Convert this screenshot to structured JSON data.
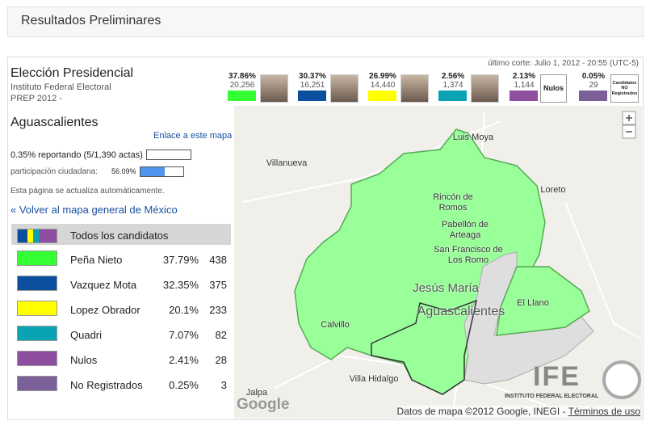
{
  "header": {
    "title": "Resultados Preliminares"
  },
  "election": {
    "title": "Elección Presidencial",
    "org": "Instituto Federal Electoral",
    "prep": "PREP 2012 -",
    "last_cut": "último corte: Julio 1, 2012 - 20:55 (UTC-5)",
    "candidates": [
      {
        "pct": "37.86%",
        "votes": "20,256",
        "color": "#33ff33"
      },
      {
        "pct": "30.37%",
        "votes": "16,251",
        "color": "#0b4f9e"
      },
      {
        "pct": "26.99%",
        "votes": "14,440",
        "color": "#ffff00"
      },
      {
        "pct": "2.56%",
        "votes": "1,374",
        "color": "#0aa3b3"
      }
    ],
    "nulos": {
      "pct": "2.13%",
      "votes": "1,144",
      "label": "Nulos",
      "color": "#8e4f9f"
    },
    "no_reg": {
      "pct": "0.05%",
      "votes": "29",
      "label": "Candidatos NO Registrados",
      "color": "#7a5f98"
    }
  },
  "panel": {
    "state": "Aguascalientes",
    "link": "Enlace a este mapa",
    "reporting": "0.35% reportando (5/1,390 actas)",
    "participation_label": "participación ciudadana:",
    "participation": "56.09%",
    "auto": "Esta página se actualiza automáticamente.",
    "back": "« Volver al mapa general de México",
    "table": {
      "header": "Todos los candidatos",
      "rows": [
        {
          "name": "Peña Nieto",
          "pct": "37.79%",
          "votes": "438",
          "color": "#33ff33"
        },
        {
          "name": "Vazquez Mota",
          "pct": "32.35%",
          "votes": "375",
          "color": "#0b4f9e"
        },
        {
          "name": "Lopez Obrador",
          "pct": "20.1%",
          "votes": "233",
          "color": "#ffff00"
        },
        {
          "name": "Quadri",
          "pct": "7.07%",
          "votes": "82",
          "color": "#0aa3b3"
        },
        {
          "name": "Nulos",
          "pct": "2.41%",
          "votes": "28",
          "color": "#8e4f9f"
        },
        {
          "name": "No Registrados",
          "pct": "0.25%",
          "votes": "3",
          "color": "#7a5f98"
        }
      ]
    }
  },
  "map": {
    "labels": [
      "Luis Moya",
      "Villanueva",
      "Loreto",
      "Rincón de Romos",
      "Pabellón de Arteaga",
      "San Francisco de Los Romo",
      "Jesús María",
      "Aguascalientes",
      "El Llano",
      "Calvillo",
      "Villa Hidalgo",
      "Jalpa"
    ],
    "attribution": "Datos de mapa ©2012 Google, INEGI -",
    "terms": "Términos de uso",
    "google": "Google",
    "ife": "IFE",
    "ife_sub": "INSTITUTO FEDERAL ELECTORAL"
  }
}
